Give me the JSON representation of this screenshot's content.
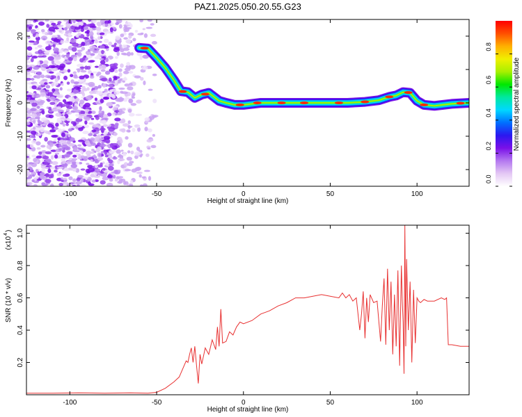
{
  "chart_data": [
    {
      "type": "heatmap",
      "title": "PAZ1.2025.050.20.55.G23",
      "xlabel": "Height of straight line (km)",
      "ylabel": "Frequency (Hz)",
      "xlim": [
        -125,
        130
      ],
      "ylim": [
        -25,
        25
      ],
      "xticks": [
        -100,
        -50,
        0,
        50,
        100
      ],
      "xtick_labels": [
        "-100",
        "-50",
        "0",
        "50",
        "100"
      ],
      "yticks": [
        -20,
        -10,
        0,
        10,
        20
      ],
      "ytick_labels": [
        "-20",
        "-10",
        "0",
        "10",
        "20"
      ],
      "grid": false,
      "ridge": {
        "x": [
          -60,
          -55,
          -50,
          -45,
          -40,
          -36,
          -32,
          -28,
          -24,
          -20,
          -17,
          -14,
          -10,
          -5,
          0,
          10,
          20,
          30,
          40,
          50,
          60,
          70,
          78,
          84,
          88,
          92,
          96,
          100,
          104,
          110,
          120,
          130
        ],
        "frequency": [
          16.5,
          16.3,
          13.5,
          10.5,
          6.8,
          3.5,
          3.2,
          1.5,
          2.5,
          3.0,
          1.8,
          0.6,
          0.0,
          -0.6,
          -0.6,
          0.0,
          0.0,
          0.0,
          0.0,
          0.0,
          0.0,
          0.3,
          0.8,
          1.8,
          2.2,
          3.2,
          3.0,
          0.6,
          -0.6,
          -0.9,
          -0.3,
          0.0
        ]
      },
      "colorbar": {
        "label": "Normalized spectral amplitude",
        "range": [
          0,
          1
        ],
        "ticks": [
          0,
          0.2,
          0.4,
          0.6,
          0.8
        ],
        "tick_labels": [
          "0.0",
          "0.2",
          "0.4",
          "0.6",
          "0.8"
        ],
        "colors": [
          "#ffffff",
          "#e4c8f4",
          "#b478f0",
          "#7a10e8",
          "#2b18f0",
          "#0070ff",
          "#00d8ff",
          "#00e8a0",
          "#00e800",
          "#a8f000",
          "#f0f000",
          "#ffb000",
          "#ff5000",
          "#ff0000"
        ]
      }
    },
    {
      "type": "line",
      "xlabel": "Height of straight line (km)",
      "ylabel": "SNR (10 * v/v)",
      "scale_label": "(x10",
      "scale_exponent": "4",
      "xlim": [
        -125,
        130
      ],
      "ylim": [
        0,
        1.05
      ],
      "xticks": [
        -100,
        -50,
        0,
        50,
        100
      ],
      "xtick_labels": [
        "-100",
        "-50",
        "0",
        "50",
        "100"
      ],
      "yticks": [
        0.2,
        0.4,
        0.6,
        0.8,
        1.0
      ],
      "ytick_labels": [
        "0.2",
        "0.4",
        "0.6",
        "0.8",
        "1.0"
      ],
      "grid": false,
      "series": [
        {
          "color": "#e83030",
          "x": [
            -125,
            -110,
            -95,
            -80,
            -65,
            -55,
            -50,
            -45,
            -40,
            -37,
            -35,
            -33,
            -32,
            -31,
            -30,
            -29,
            -28,
            -27,
            -26,
            -25,
            -24,
            -22,
            -20,
            -18,
            -16,
            -15,
            -14,
            -13,
            -12,
            -10,
            -8,
            -6,
            -4,
            -2,
            0,
            5,
            10,
            15,
            20,
            25,
            30,
            35,
            40,
            45,
            50,
            55,
            57,
            59,
            61,
            63,
            65,
            67,
            68,
            69,
            70,
            71,
            72,
            73,
            75,
            77,
            79,
            80,
            81,
            82,
            83,
            84,
            85,
            86,
            87,
            88,
            89,
            90,
            91,
            91.5,
            92,
            92.5,
            93,
            93.5,
            94,
            94.5,
            95,
            96,
            97,
            98,
            99,
            100,
            101,
            102,
            104,
            106,
            110,
            114,
            116,
            117,
            118,
            120,
            125,
            130
          ],
          "y": [
            0.01,
            0.01,
            0.012,
            0.01,
            0.012,
            0.01,
            0.015,
            0.04,
            0.08,
            0.11,
            0.16,
            0.21,
            0.2,
            0.25,
            0.29,
            0.2,
            0.3,
            0.18,
            0.07,
            0.25,
            0.19,
            0.29,
            0.25,
            0.34,
            0.28,
            0.42,
            0.3,
            0.53,
            0.32,
            0.33,
            0.39,
            0.37,
            0.42,
            0.45,
            0.44,
            0.46,
            0.5,
            0.52,
            0.55,
            0.57,
            0.6,
            0.6,
            0.61,
            0.62,
            0.61,
            0.6,
            0.63,
            0.6,
            0.62,
            0.58,
            0.6,
            0.4,
            0.5,
            0.64,
            0.35,
            0.6,
            0.45,
            0.62,
            0.57,
            0.58,
            0.33,
            0.55,
            0.72,
            0.31,
            0.78,
            0.4,
            0.7,
            0.25,
            0.62,
            0.3,
            0.77,
            0.18,
            0.8,
            0.58,
            0.45,
            0.13,
            1.05,
            0.3,
            0.84,
            0.6,
            0.4,
            0.7,
            0.2,
            0.65,
            0.32,
            0.6,
            0.58,
            0.57,
            0.59,
            0.58,
            0.58,
            0.6,
            0.59,
            0.6,
            0.31,
            0.31,
            0.3,
            0.3
          ]
        }
      ]
    }
  ]
}
